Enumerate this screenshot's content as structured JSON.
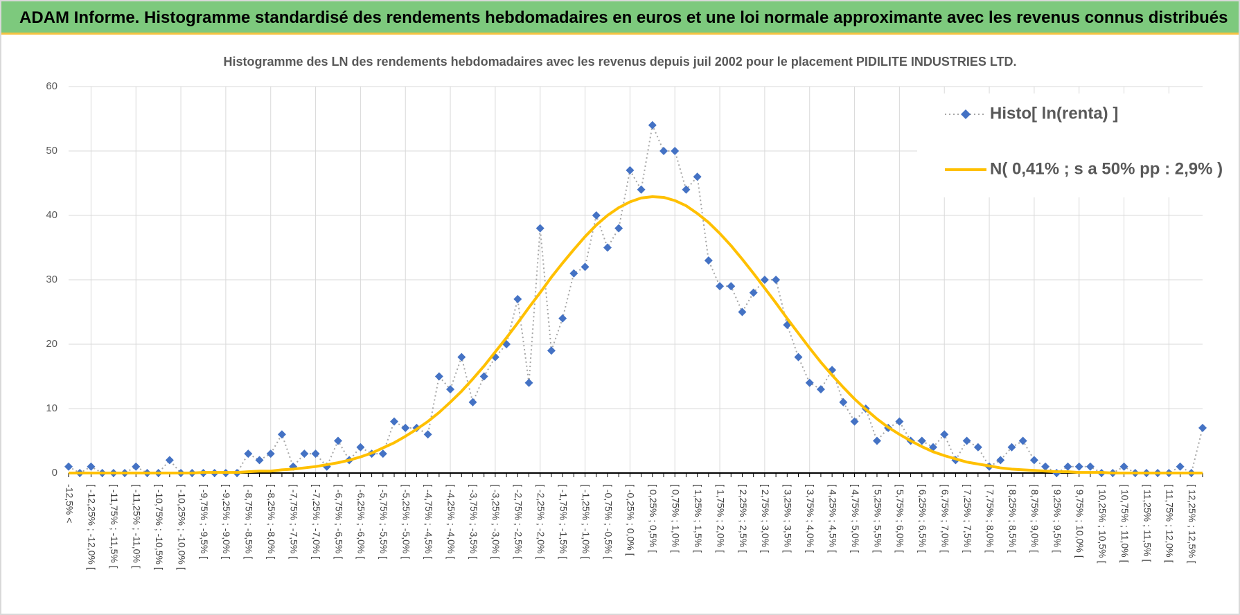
{
  "header": {
    "title": "ADAM Informe. Histogramme standardisé des rendements hebdomadaires en euros et une loi normale approximante avec les revenus connus distribués"
  },
  "chart_data": {
    "type": "line",
    "title": "Histogramme des LN des rendements hebdomadaires avec les revenus depuis juil 2002 pour le placement PIDILITE INDUSTRIES LTD.",
    "categories": [
      "-12,5% <",
      null,
      "[ -12,25% ; -12,0% [",
      null,
      "[ -11,75% ; -11,5% [",
      null,
      "[ -11,25% ; -11,0% [",
      null,
      "[ -10,75% ; -10,5% [",
      null,
      "[ -10,25% ; -10,0% [",
      null,
      "[ -9,75% ; -9,5% [",
      null,
      "[ -9,25% ; -9,0% [",
      null,
      "[ -8,75% ; -8,5% [",
      null,
      "[ -8,25% ; -8,0% [",
      null,
      "[ -7,75% ; -7,5% [",
      null,
      "[ -7,25% ; -7,0% [",
      null,
      "[ -6,75% ; -6,5% [",
      null,
      "[ -6,25% ; -6,0% [",
      null,
      "[ -5,75% ; -5,5% [",
      null,
      "[ -5,25% ; -5,0% [",
      null,
      "[ -4,75% ; -4,5% [",
      null,
      "[ -4,25% ; -4,0% [",
      null,
      "[ -3,75% ; -3,5% [",
      null,
      "[ -3,25% ; -3,0% [",
      null,
      "[ -2,75% ; -2,5% [",
      null,
      "[ -2,25% ; -2,0% [",
      null,
      "[ -1,75% ; -1,5% [",
      null,
      "[ -1,25% ; -1,0% [",
      null,
      "[ -0,75% ; -0,5% [",
      null,
      "[ -0,25% ; 0,0% [",
      null,
      "[ 0,25% ; 0,5% [",
      null,
      "[ 0,75% ; 1,0% [",
      null,
      "[ 1,25% ; 1,5% [",
      null,
      "[ 1,75% ; 2,0% [",
      null,
      "[ 2,25% ; 2,5% [",
      null,
      "[ 2,75% ; 3,0% [",
      null,
      "[ 3,25% ; 3,5% [",
      null,
      "[ 3,75% ; 4,0% [",
      null,
      "[ 4,25% ; 4,5% [",
      null,
      "[ 4,75% ; 5,0% [",
      null,
      "[ 5,25% ; 5,5% [",
      null,
      "[ 5,75% ; 6,0% [",
      null,
      "[ 6,25% ; 6,5% [",
      null,
      "[ 6,75% ; 7,0% [",
      null,
      "[ 7,25% ; 7,5% [",
      null,
      "[ 7,75% ; 8,0% [",
      null,
      "[ 8,25% ; 8,5% [",
      null,
      "[ 8,75% ; 9,0% [",
      null,
      "[ 9,25% ; 9,5% [",
      null,
      "[ 9,75% ; 10,0% [",
      null,
      "[ 10,25% ; 10,5% [",
      null,
      "[ 10,75% ; 11,0% [",
      null,
      "[ 11,25% ; 11,5% [",
      null,
      "[ 11,75% ; 12,0% [",
      null,
      "[ 12,25% ; 12,5% [",
      null
    ],
    "series": [
      {
        "name": "Histo[ ln(renta) ]",
        "color": "#4472c4",
        "marker": "diamond",
        "line_color": "#a6a6a6",
        "line_dash": "dotted",
        "values": [
          1,
          0,
          1,
          0,
          0,
          0,
          1,
          0,
          0,
          2,
          0,
          0,
          0,
          0,
          0,
          0,
          3,
          2,
          3,
          6,
          1,
          3,
          3,
          1,
          5,
          2,
          4,
          3,
          3,
          8,
          7,
          7,
          6,
          15,
          13,
          18,
          11,
          15,
          18,
          20,
          27,
          14,
          38,
          19,
          24,
          31,
          32,
          40,
          35,
          38,
          47,
          44,
          54,
          50,
          50,
          44,
          46,
          33,
          29,
          29,
          25,
          28,
          30,
          30,
          23,
          18,
          14,
          13,
          16,
          11,
          8,
          10,
          5,
          7,
          8,
          5,
          5,
          4,
          6,
          2,
          5,
          4,
          1,
          2,
          4,
          5,
          2,
          1,
          0,
          1,
          1,
          1,
          0,
          0,
          1,
          0,
          0,
          0,
          0,
          1,
          0,
          7
        ]
      },
      {
        "name": "N( 0,41% ; s a 50% pp : 2,9% )",
        "color": "#ffc000",
        "line_width": 4,
        "values": [
          0,
          0,
          0,
          0,
          0,
          0,
          0,
          0,
          0,
          0,
          0,
          0,
          0.1,
          0.1,
          0.1,
          0.1,
          0.2,
          0.3,
          0.3,
          0.5,
          0.6,
          0.8,
          1.0,
          1.3,
          1.6,
          2.0,
          2.5,
          3.1,
          3.9,
          4.7,
          5.7,
          6.8,
          8.0,
          9.4,
          11.0,
          12.7,
          14.6,
          16.6,
          18.8,
          21.0,
          23.3,
          25.7,
          28.0,
          30.4,
          32.6,
          34.7,
          36.7,
          38.5,
          40.0,
          41.2,
          42.1,
          42.7,
          42.9,
          42.8,
          42.3,
          41.5,
          40.3,
          38.9,
          37.2,
          35.3,
          33.2,
          31.0,
          28.7,
          26.4,
          24.0,
          21.7,
          19.4,
          17.2,
          15.2,
          13.3,
          11.5,
          9.9,
          8.4,
          7.1,
          6.0,
          5.0,
          4.1,
          3.3,
          2.7,
          2.2,
          1.7,
          1.4,
          1.1,
          0.8,
          0.6,
          0.5,
          0.4,
          0.3,
          0.2,
          0.2,
          0.1,
          0.1,
          0.1,
          0,
          0,
          0,
          0,
          0,
          0,
          0,
          0,
          0
        ]
      }
    ],
    "ylim": [
      0,
      60
    ],
    "yticks": [
      0,
      10,
      20,
      30,
      40,
      50,
      60
    ],
    "grid": true,
    "legend": "top-right"
  }
}
